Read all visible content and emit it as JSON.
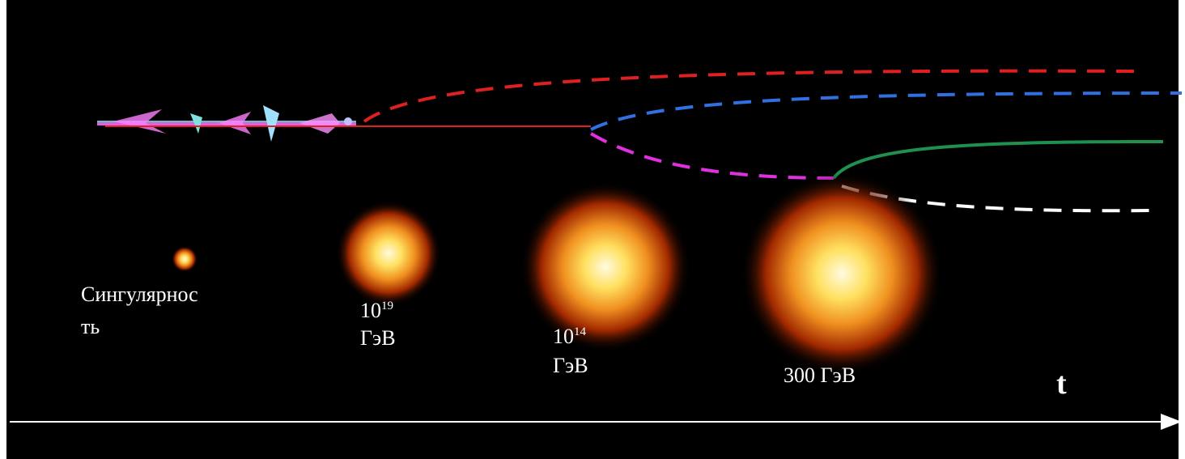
{
  "labels": [
    {
      "lines": [
        "Сингулярнос",
        "ть"
      ]
    },
    {
      "base": "10",
      "exponent": "19",
      "unit": "ГэВ"
    },
    {
      "base": "10",
      "exponent": "14",
      "unit": "ГэВ"
    },
    {
      "text": "300 ГэВ"
    }
  ],
  "axis_label": "t"
}
